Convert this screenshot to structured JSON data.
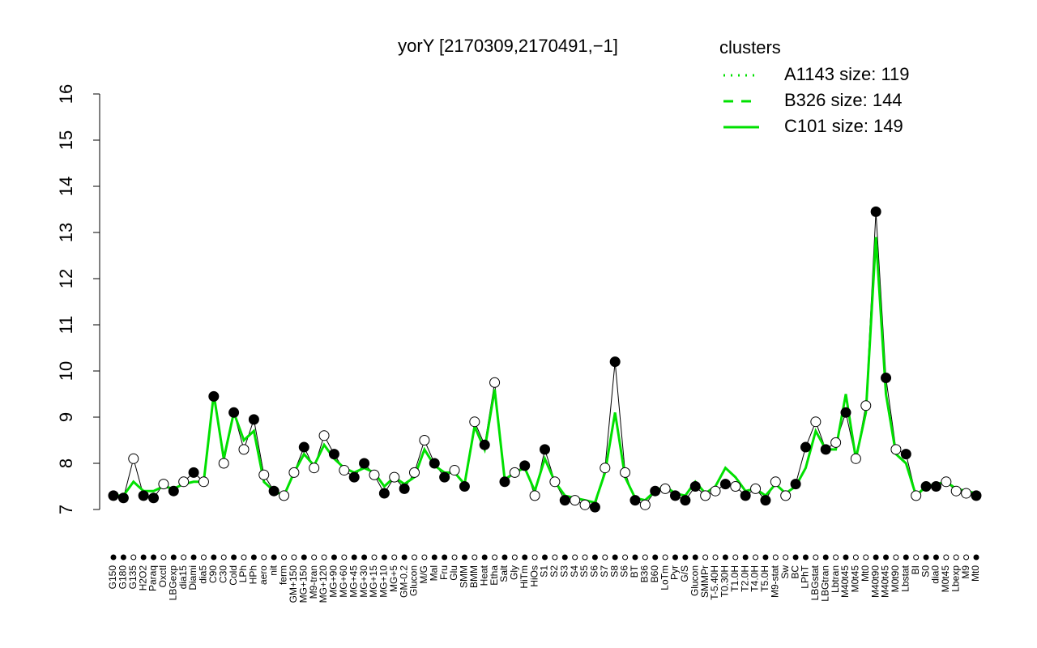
{
  "chart_data": {
    "type": "line",
    "title": "yorY [2170309,2170491,−1]",
    "categories": [
      "G150",
      "G180",
      "G135",
      "H2O2",
      "Paraq",
      "Oxctl",
      "LBGexp",
      "dia15",
      "Diami",
      "dia5",
      "C90",
      "C30",
      "Cold",
      "LPh",
      "HPh",
      "aero",
      "nit",
      "ferm",
      "GM+150",
      "MG+150",
      "M9-tran",
      "MG+120",
      "MG+90",
      "MG+60",
      "MG+45",
      "MG+30",
      "MG+15",
      "MG+10",
      "MG+5",
      "GM-0.2",
      "Glucon",
      "M/G",
      "Mal",
      "Fru",
      "Glu",
      "SMM",
      "BMM",
      "Heat",
      "Etha",
      "Salt",
      "Gly",
      "HiTm",
      "HiOs",
      "S1",
      "S2",
      "S3",
      "S4",
      "S5",
      "S6",
      "S7",
      "S8",
      "S6",
      "BT",
      "B36",
      "B60",
      "LoTm",
      "Pyr",
      "G/S",
      "Glucon",
      "SMMPr",
      "T-5.40H",
      "T0.30H",
      "T1.0H",
      "T2.0H",
      "T4.0H",
      "T5.0H",
      "M9-stat",
      "Sw",
      "BC",
      "LPhT",
      "LBGstat",
      "LBGtran",
      "Lbtran",
      "M40t45",
      "M0t45",
      "Mt0",
      "M40t90",
      "M40t45",
      "M0t90",
      "Lbstat",
      "BI",
      "S0",
      "dia0",
      "M0t45",
      "Lbexp",
      "M9",
      "Mt0"
    ],
    "values": [
      7.3,
      7.25,
      8.1,
      7.3,
      7.25,
      7.55,
      7.4,
      7.6,
      7.8,
      7.6,
      9.45,
      8.0,
      9.1,
      8.3,
      8.95,
      7.75,
      7.4,
      7.3,
      7.8,
      8.35,
      7.9,
      8.6,
      8.2,
      7.85,
      7.7,
      8.0,
      7.75,
      7.35,
      7.7,
      7.45,
      7.8,
      8.5,
      8.0,
      7.7,
      7.85,
      7.5,
      8.9,
      8.4,
      9.75,
      7.6,
      7.8,
      7.95,
      7.3,
      8.3,
      7.6,
      7.2,
      7.2,
      7.1,
      7.05,
      7.9,
      10.2,
      7.8,
      7.2,
      7.1,
      7.4,
      7.45,
      7.3,
      7.2,
      7.5,
      7.3,
      7.4,
      7.55,
      7.5,
      7.3,
      7.45,
      7.2,
      7.6,
      7.3,
      7.55,
      8.35,
      8.9,
      8.3,
      8.45,
      9.1,
      8.1,
      9.25,
      13.45,
      9.85,
      8.3,
      8.2,
      7.3,
      7.5,
      7.5,
      7.6,
      7.4,
      7.35,
      7.3
    ],
    "marker_fills": [
      "#000",
      "#000",
      "#fff",
      "#000",
      "#000",
      "#fff",
      "#000",
      "#fff",
      "#000",
      "#fff",
      "#000",
      "#fff",
      "#000",
      "#fff",
      "#000",
      "#fff",
      "#000",
      "#fff",
      "#fff",
      "#000",
      "#fff",
      "#fff",
      "#000",
      "#fff",
      "#000",
      "#000",
      "#fff",
      "#000",
      "#fff",
      "#000",
      "#fff",
      "#fff",
      "#000",
      "#000",
      "#fff",
      "#000",
      "#fff",
      "#000",
      "#fff",
      "#000",
      "#fff",
      "#000",
      "#fff",
      "#000",
      "#fff",
      "#000",
      "#fff",
      "#fff",
      "#000",
      "#fff",
      "#000",
      "#fff",
      "#000",
      "#fff",
      "#000",
      "#fff",
      "#000",
      "#000",
      "#000",
      "#fff",
      "#fff",
      "#000",
      "#fff",
      "#000",
      "#fff",
      "#000",
      "#fff",
      "#fff",
      "#000",
      "#000",
      "#fff",
      "#000",
      "#fff",
      "#000",
      "#fff",
      "#fff",
      "#000",
      "#000",
      "#fff",
      "#000",
      "#fff",
      "#000",
      "#000",
      "#fff",
      "#fff",
      "#fff",
      "#000"
    ],
    "cluster_line": {
      "name": "C101 size: 149",
      "color": "#00e000",
      "values": [
        7.3,
        7.3,
        7.6,
        7.4,
        7.4,
        7.5,
        7.45,
        7.55,
        7.6,
        7.6,
        9.5,
        8.1,
        9.1,
        8.5,
        8.7,
        7.6,
        7.4,
        7.3,
        7.8,
        8.2,
        7.95,
        8.4,
        8.1,
        7.9,
        7.8,
        7.9,
        7.8,
        7.5,
        7.7,
        7.55,
        7.7,
        8.3,
        7.95,
        7.8,
        7.8,
        7.55,
        8.8,
        8.3,
        9.6,
        7.65,
        7.8,
        7.9,
        7.4,
        8.1,
        7.6,
        7.3,
        7.25,
        7.2,
        7.15,
        7.8,
        9.1,
        7.7,
        7.25,
        7.2,
        7.4,
        7.5,
        7.35,
        7.3,
        7.6,
        7.35,
        7.5,
        7.9,
        7.7,
        7.4,
        7.45,
        7.3,
        7.55,
        7.35,
        7.5,
        7.9,
        8.7,
        8.3,
        8.3,
        9.5,
        8.1,
        9.1,
        12.9,
        9.5,
        8.2,
        8.0,
        7.3,
        7.5,
        7.55,
        7.6,
        7.45,
        7.4,
        7.35
      ]
    },
    "legend": {
      "title": "clusters",
      "color": "#00e000",
      "entries": [
        {
          "name": "A1143 size: 119",
          "dash": "dotted"
        },
        {
          "name": "B326 size: 144",
          "dash": "dashed"
        },
        {
          "name": "C101 size: 149",
          "dash": "solid"
        }
      ]
    },
    "ylim": [
      7,
      16
    ],
    "yticks": [
      7,
      8,
      9,
      10,
      11,
      12,
      13,
      14,
      15,
      16
    ]
  }
}
